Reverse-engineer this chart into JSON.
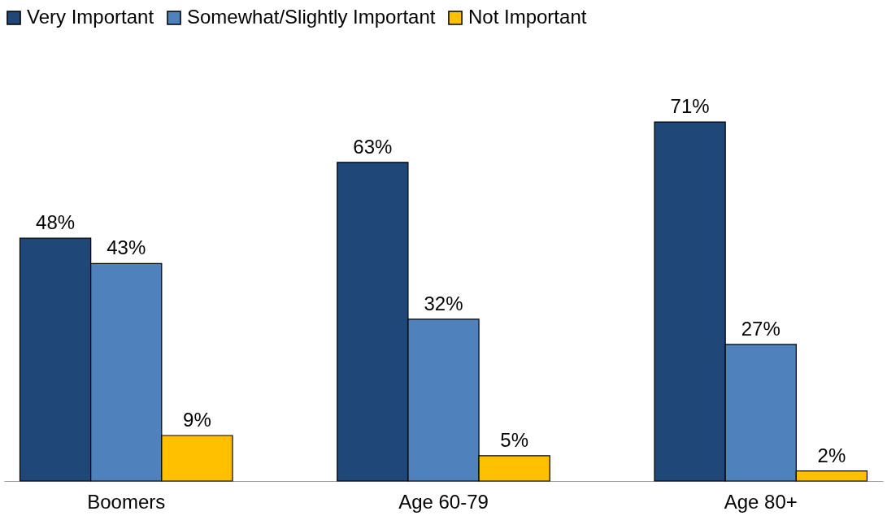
{
  "chart_data": {
    "type": "bar",
    "categories": [
      "Boomers",
      "Age 60-79",
      "Age 80+"
    ],
    "series": [
      {
        "name": "Very Important",
        "color": "#1f4778",
        "values": [
          48,
          63,
          71
        ],
        "value_labels": [
          "48%",
          "63%",
          "71%"
        ]
      },
      {
        "name": "Somewhat/Slightly Important",
        "color": "#4f81bd",
        "values": [
          43,
          32,
          27
        ],
        "value_labels": [
          "43%",
          "32%",
          "27%"
        ]
      },
      {
        "name": "Not Important",
        "color": "#ffc000",
        "values": [
          9,
          5,
          2
        ],
        "value_labels": [
          "9%",
          "5%",
          "2%"
        ]
      }
    ],
    "legend": "top",
    "grid": false,
    "tick_labels": "x"
  }
}
